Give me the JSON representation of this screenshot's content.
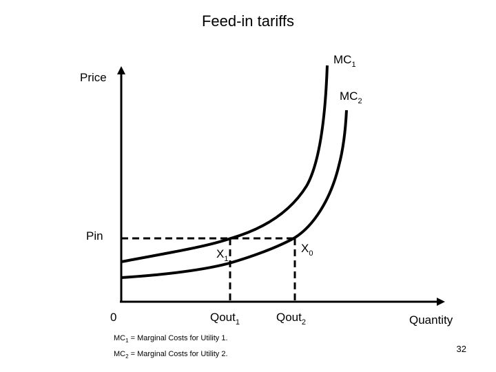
{
  "slide": {
    "title": "Feed-in tariffs",
    "page_number": "32"
  },
  "diagram": {
    "y_axis_label": "Price",
    "x_axis_label": "Quantity",
    "origin_label": "0",
    "price_level_label": "Pin",
    "curves": [
      {
        "label": "MC",
        "subscript": "1"
      },
      {
        "label": "MC",
        "subscript": "2"
      }
    ],
    "points": [
      {
        "label": "X",
        "subscript": "1"
      },
      {
        "label": "X",
        "subscript": "0"
      }
    ],
    "quantity_labels": [
      {
        "label": "Qout",
        "subscript": "1"
      },
      {
        "label": "Qout",
        "subscript": "2"
      }
    ],
    "footnotes": [
      {
        "label": "MC",
        "subscript": "1",
        "text": " = Marginal Costs for Utility 1."
      },
      {
        "label": "MC",
        "subscript": "2",
        "text": " = Marginal Costs for Utility 2."
      }
    ]
  }
}
